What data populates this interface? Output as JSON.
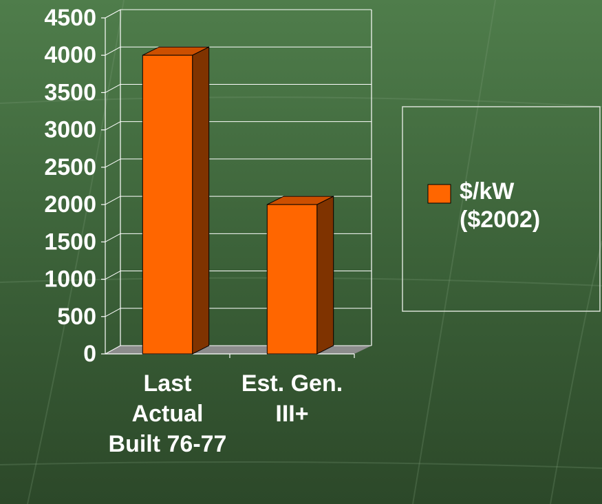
{
  "chart_data": {
    "type": "bar3d",
    "categories": [
      "Last Actual Built 76-77",
      "Est. Gen. III+"
    ],
    "series": [
      {
        "name": "$/kW ($2002)",
        "color": "#ff6600",
        "values": [
          4000,
          2000
        ]
      }
    ],
    "ylim": [
      0,
      4500
    ],
    "yticks": [
      0,
      500,
      1000,
      1500,
      2000,
      2500,
      3000,
      3500,
      4000,
      4500
    ],
    "grid": true,
    "legend": "right"
  }
}
